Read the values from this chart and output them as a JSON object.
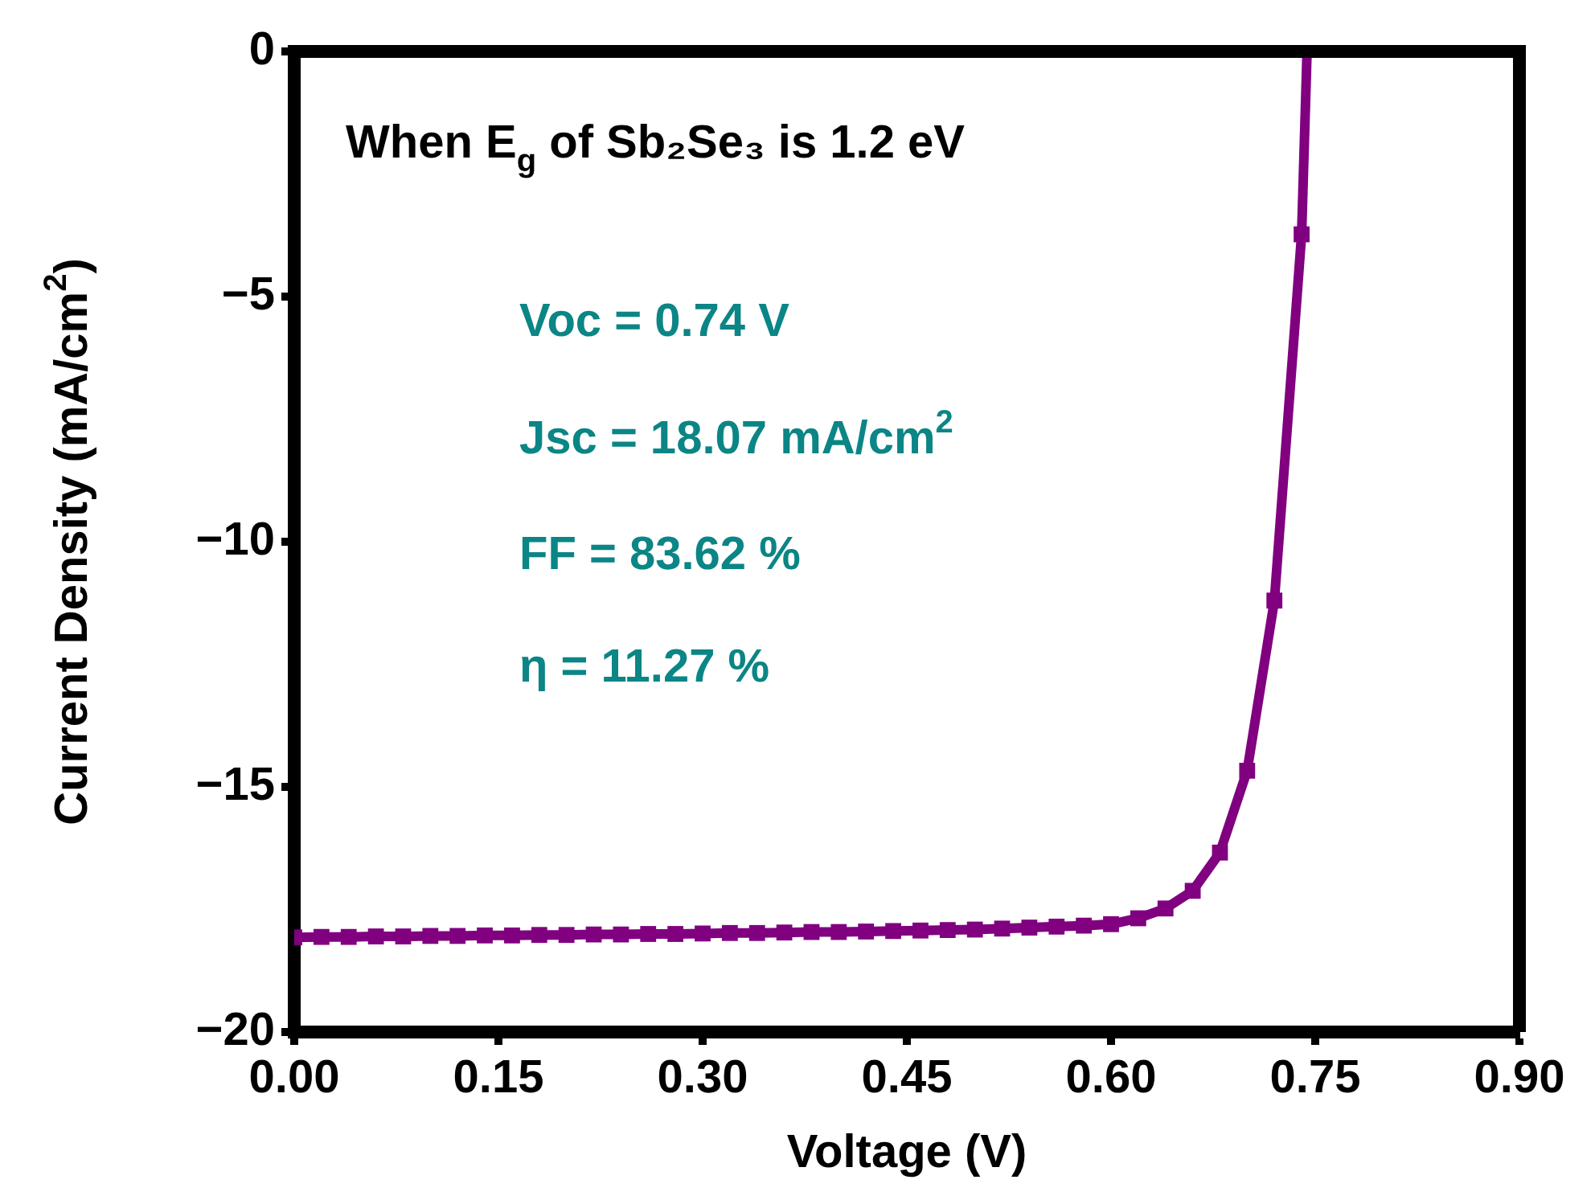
{
  "chart_data": {
    "type": "line",
    "title": "When E$_{g}$ of Sb₂Se₃ is 1.2 eV",
    "xlabel": "Voltage (V)",
    "ylabel": "Current Density (mA/cm$^{2}$)",
    "annotations": [
      "Voc = 0.74 V",
      "Jsc = 18.07 mA/cm$^{2}$",
      "FF = 83.62 %",
      "η = 11.27 %"
    ],
    "x": [
      0,
      0.02,
      0.04,
      0.06,
      0.08,
      0.1,
      0.12,
      0.14,
      0.16,
      0.18,
      0.2,
      0.22,
      0.24,
      0.26,
      0.28,
      0.3,
      0.32,
      0.34,
      0.36,
      0.38,
      0.4,
      0.42,
      0.44,
      0.46,
      0.48,
      0.5,
      0.52,
      0.54,
      0.56,
      0.58,
      0.6,
      0.62,
      0.64,
      0.66,
      0.68,
      0.7,
      0.72,
      0.74
    ],
    "series": [
      {
        "color": "#800080",
        "values": [
          -18.07,
          -18.06,
          -18.06,
          -18.05,
          -18.05,
          -18.04,
          -18.04,
          -18.03,
          -18.03,
          -18.02,
          -18.02,
          -18.01,
          -18.01,
          -18.0,
          -18.0,
          -17.99,
          -17.98,
          -17.98,
          -17.97,
          -17.96,
          -17.96,
          -17.95,
          -17.94,
          -17.93,
          -17.92,
          -17.91,
          -17.89,
          -17.87,
          -17.85,
          -17.83,
          -17.8,
          -17.68,
          -17.48,
          -17.12,
          -16.34,
          -14.67,
          -11.2,
          -3.73
        ]
      },
      {
        "color": "#800080",
        "marker": "none",
        "x": [
          0.74,
          0.744
        ],
        "values": [
          -3.73,
          0
        ]
      }
    ],
    "marker": "square",
    "xlim": [
      0,
      0.9
    ],
    "ylim": [
      -20,
      0
    ],
    "xticks": [
      {
        "value": 0,
        "label": "0.00"
      },
      {
        "value": 0.15,
        "label": "0.15"
      },
      {
        "value": 0.3,
        "label": "0.30"
      },
      {
        "value": 0.45,
        "label": "0.45"
      },
      {
        "value": 0.6,
        "label": "0.60"
      },
      {
        "value": 0.75,
        "label": "0.75"
      },
      {
        "value": 0.9,
        "label": "0.90"
      }
    ],
    "yticks": [
      {
        "value": -20,
        "label": "−20"
      },
      {
        "value": -15,
        "label": "−15"
      },
      {
        "value": -10,
        "label": "−10"
      },
      {
        "value": -5,
        "label": "−5"
      },
      0
    ]
  }
}
